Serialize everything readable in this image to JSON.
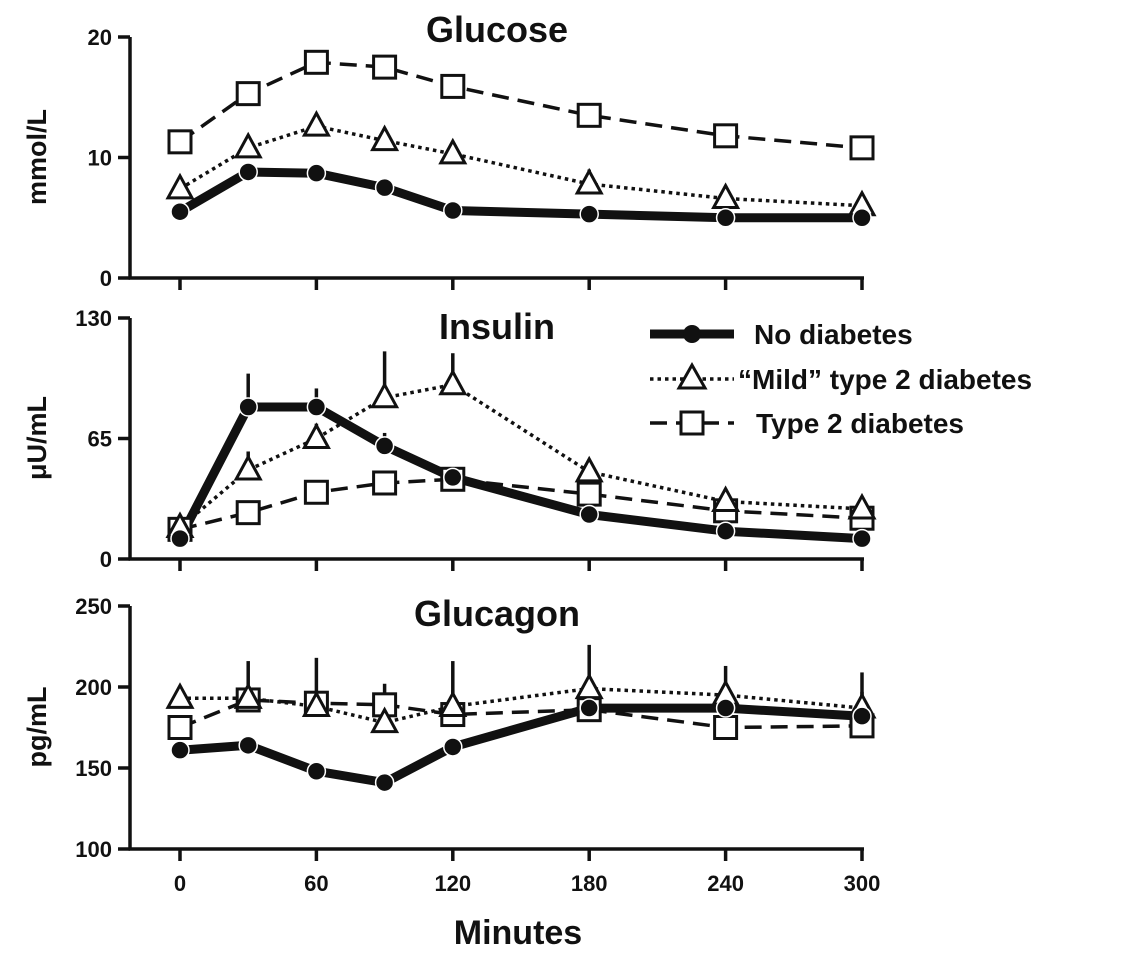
{
  "chart_data": [
    {
      "type": "line",
      "title": "Glucose",
      "ylabel": "mmol/L",
      "ylim": [
        0,
        20
      ],
      "yticks": [
        0,
        10,
        20
      ],
      "x": [
        0,
        30,
        60,
        90,
        120,
        180,
        240,
        300
      ],
      "series": [
        {
          "name": "No diabetes",
          "values": [
            5.5,
            8.8,
            8.7,
            7.5,
            5.6,
            5.3,
            5.0,
            5.0
          ],
          "err": [
            0.4,
            0.5,
            0.5,
            0.4,
            0.4,
            0.4,
            0.3,
            0.3
          ]
        },
        {
          "name": "“Mild” type 2 diabetes",
          "values": [
            7.4,
            10.8,
            12.6,
            11.4,
            10.3,
            7.8,
            6.6,
            6.0
          ],
          "err": [
            0.5,
            0.6,
            0.8,
            0.7,
            0.7,
            1.2,
            0.5,
            0.4
          ]
        },
        {
          "name": "Type 2 diabetes",
          "values": [
            11.3,
            15.3,
            17.9,
            17.5,
            15.9,
            13.5,
            11.8,
            10.8
          ],
          "err": [
            0.7,
            0.8,
            0.8,
            0.8,
            0.8,
            0.8,
            0.7,
            0.6
          ]
        }
      ]
    },
    {
      "type": "line",
      "title": "Insulin",
      "ylabel": "μU/mL",
      "ylim": [
        0,
        130
      ],
      "yticks": [
        0,
        65,
        130
      ],
      "x": [
        0,
        30,
        60,
        90,
        120,
        180,
        240,
        300
      ],
      "series": [
        {
          "name": "No diabetes",
          "values": [
            11,
            82,
            82,
            61,
            44,
            24,
            15,
            11
          ],
          "err": [
            2,
            18,
            10,
            7,
            5,
            3,
            2,
            2
          ]
        },
        {
          "name": "“Mild” type 2 diabetes",
          "values": [
            17,
            48,
            65,
            87,
            94,
            47,
            31,
            27
          ],
          "err": [
            3,
            10,
            8,
            25,
            17,
            6,
            4,
            3
          ]
        },
        {
          "name": "Type 2 diabetes",
          "values": [
            16,
            25,
            36,
            41,
            43,
            35,
            26,
            22
          ],
          "err": [
            2,
            3,
            3,
            5,
            4,
            4,
            3,
            2
          ]
        }
      ]
    },
    {
      "type": "line",
      "title": "Glucagon",
      "ylabel": "pg/mL",
      "ylim": [
        100,
        250
      ],
      "yticks": [
        100,
        150,
        200,
        250
      ],
      "x": [
        0,
        30,
        60,
        90,
        120,
        180,
        240,
        300
      ],
      "series": [
        {
          "name": "No diabetes",
          "values": [
            161,
            164,
            148,
            141,
            163,
            187,
            187,
            182
          ],
          "err": [
            4,
            4,
            4,
            4,
            5,
            8,
            8,
            27
          ]
        },
        {
          "name": "“Mild” type 2 diabetes",
          "values": [
            193,
            193,
            188,
            178,
            188,
            199,
            195,
            187
          ],
          "err": [
            6,
            7,
            6,
            7,
            10,
            27,
            18,
            10
          ]
        },
        {
          "name": "Type 2 diabetes",
          "values": [
            175,
            192,
            190,
            189,
            183,
            186,
            175,
            176
          ],
          "err": [
            5,
            24,
            28,
            13,
            33,
            8,
            9,
            6
          ]
        }
      ]
    }
  ],
  "x_ticks": [
    "0",
    "60",
    "120",
    "180",
    "240",
    "300"
  ],
  "xlabel": "Minutes",
  "legend": {
    "placement": "top-right of Insulin panel",
    "items": [
      "No diabetes",
      "“Mild” type 2 diabetes",
      "Type 2 diabetes"
    ]
  }
}
